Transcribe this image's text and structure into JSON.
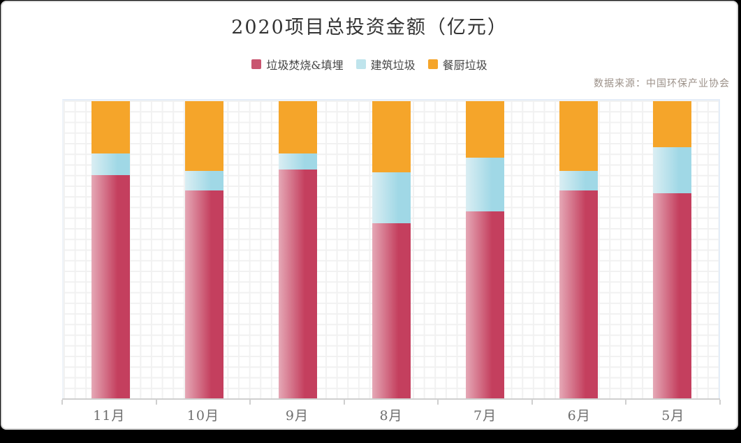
{
  "page": {
    "background_color": "#000000",
    "card_background": "#ffffff",
    "card_border_color": "#d6d6d6"
  },
  "title": "2020项目总投资金额（亿元）",
  "source": "数据来源：中国环保产业协会",
  "legend": {
    "position": "top-center",
    "items": [
      {
        "label": "垃圾焚烧&填埋",
        "color": "#c95570"
      },
      {
        "label": "建筑垃圾",
        "color": "#bfe4ec"
      },
      {
        "label": "餐厨垃圾",
        "color": "#f5a52a"
      }
    ]
  },
  "chart_data": {
    "type": "bar",
    "stacked": true,
    "unit": "percent",
    "title": "2020项目总投资金额（亿元）",
    "xlabel": "",
    "ylabel": "",
    "legend_position": "top",
    "grid": true,
    "y_axis_visible": false,
    "categories": [
      "11月",
      "10月",
      "9月",
      "8月",
      "7月",
      "6月",
      "5月"
    ],
    "series": [
      {
        "name": "垃圾焚烧&填埋",
        "color_from": "#e5a8b6",
        "color_to": "#c43f5e",
        "values": [
          75,
          70,
          77,
          59,
          63,
          70,
          69
        ]
      },
      {
        "name": "建筑垃圾",
        "color_from": "#daeef3",
        "color_to": "#a0d8e6",
        "values": [
          7.5,
          6.5,
          5.5,
          17,
          18,
          6.5,
          15.5
        ]
      },
      {
        "name": "餐厨垃圾",
        "color_from": "#f5a52a",
        "color_to": "#f5a52a",
        "values": [
          17.5,
          23.5,
          17.5,
          24,
          19,
          23.5,
          15.5
        ]
      }
    ]
  }
}
